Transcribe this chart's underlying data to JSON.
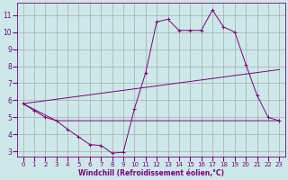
{
  "xlabel": "Windchill (Refroidissement éolien,°C)",
  "bg_color": "#cce8e8",
  "line_color": "#800080",
  "grid_color": "#aaaaaa",
  "xlim": [
    -0.5,
    23.5
  ],
  "ylim": [
    2.7,
    11.7
  ],
  "xticks": [
    0,
    1,
    2,
    3,
    4,
    5,
    6,
    7,
    8,
    9,
    10,
    11,
    12,
    13,
    14,
    15,
    16,
    17,
    18,
    19,
    20,
    21,
    22,
    23
  ],
  "yticks": [
    3,
    4,
    5,
    6,
    7,
    8,
    9,
    10,
    11
  ],
  "line1_x": [
    0,
    1,
    2,
    3,
    4,
    5,
    6,
    7,
    8,
    9,
    10,
    11,
    12,
    13,
    14,
    15,
    16,
    17,
    18,
    19,
    20,
    21,
    22,
    23
  ],
  "line1_y": [
    5.8,
    5.4,
    5.0,
    4.8,
    4.3,
    3.85,
    3.4,
    3.35,
    2.9,
    2.95,
    5.5,
    7.6,
    10.6,
    10.75,
    10.1,
    10.1,
    10.1,
    11.3,
    10.3,
    10.0,
    8.1,
    6.3,
    5.0,
    4.8
  ],
  "line2_x": [
    0,
    3,
    23
  ],
  "line2_y": [
    5.8,
    4.8,
    4.8
  ],
  "line3_x": [
    0,
    23
  ],
  "line3_y": [
    5.8,
    7.8
  ],
  "xlabel_fontsize": 5.5,
  "tick_fontsize_x": 5.0,
  "tick_fontsize_y": 5.5
}
